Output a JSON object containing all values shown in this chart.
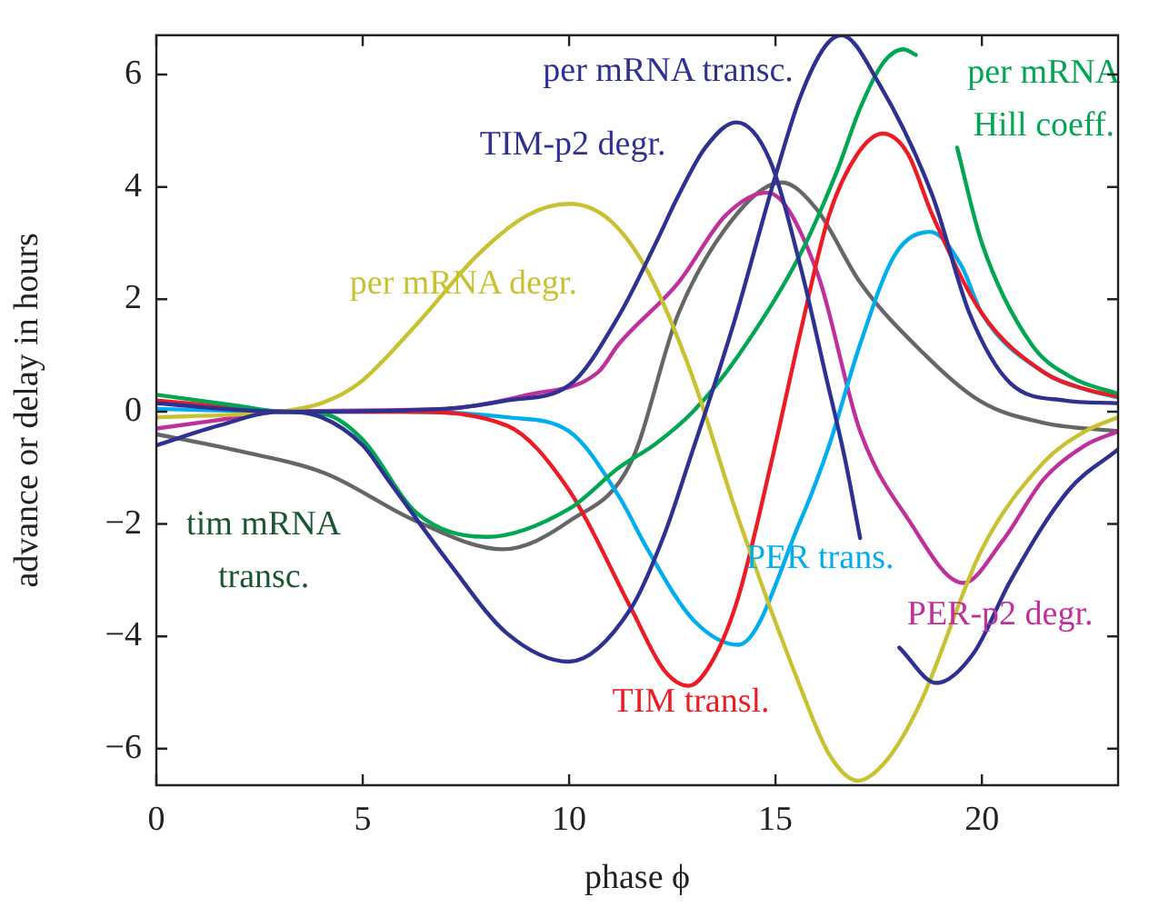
{
  "chart_data": {
    "type": "line",
    "xlabel": "phase ϕ",
    "ylabel": "advance or delay in hours",
    "xlim": [
      0,
      23.3
    ],
    "xticks": [
      0,
      5,
      10,
      15,
      20
    ],
    "ylim": [
      -6.65,
      6.7
    ],
    "yticks": [
      -6,
      -4,
      -2,
      0,
      2,
      4,
      6
    ],
    "grid": false,
    "legend": false,
    "marker": "none",
    "line_style": "solid",
    "annotations": [
      "tim mRNA transc."
    ],
    "series": [
      {
        "name": "per mRNA transc.",
        "color": "#2e3192",
        "x": [
          0,
          1.5,
          3,
          4,
          5,
          5.6,
          7.1,
          8.5,
          10,
          11.5,
          12.3,
          12.9,
          14,
          15,
          15.6,
          16.2,
          16.6,
          17.5,
          18.8,
          19.7,
          20.7,
          22,
          23.3
        ],
        "values": [
          -0.6,
          -0.25,
          0,
          -0.1,
          -0.6,
          -1.2,
          -2.7,
          -3.95,
          -4.45,
          -3.5,
          -2.2,
          -0.9,
          1.6,
          4.2,
          5.6,
          6.5,
          6.7,
          5.85,
          3.85,
          1.75,
          0.5,
          0.2,
          0.15
        ]
      },
      {
        "name": "TIM-p2 degr.",
        "color": "#2e3192",
        "x": [
          0,
          3,
          7,
          8.5,
          10,
          11.2,
          12.1,
          12.65,
          13.3,
          14.05,
          14.85,
          15.6,
          16.2,
          16.7,
          17.05,
          17.5,
          18,
          18.9,
          19.8,
          20.7,
          22.1,
          23.3
        ],
        "values": [
          0.15,
          0,
          0.05,
          0.2,
          0.47,
          1.7,
          3,
          3.85,
          4.7,
          5.15,
          4.5,
          2.6,
          0.7,
          -0.9,
          -2.25,
          null,
          -4.2,
          -4.83,
          -4.3,
          -3,
          -1.4,
          -0.67
        ]
      },
      {
        "name": "per mRNA degr.",
        "color": "#c8c232",
        "x": [
          0,
          2,
          3,
          4,
          4.9,
          6.3,
          7.8,
          9,
          10,
          11,
          11.9,
          12.95,
          14.1,
          15.6,
          16.3,
          17,
          17.7,
          18.5,
          20,
          21.5,
          22.5,
          23.3
        ],
        "values": [
          -0.1,
          -0.05,
          0,
          0.15,
          0.5,
          1.55,
          2.8,
          3.5,
          3.7,
          3.4,
          2.5,
          0.7,
          -1.9,
          -4.9,
          -6.1,
          -6.57,
          -6.2,
          -5.2,
          -2.45,
          -0.9,
          -0.35,
          -0.1
        ]
      },
      {
        "name": "per mRNA Hill coeff.",
        "color": "#00a651",
        "x": [
          0,
          2,
          3,
          4.1,
          5,
          6.3,
          8,
          10,
          11.2,
          12.1,
          13,
          14.1,
          15.6,
          16.5,
          17.05,
          17.6,
          18.1,
          18.4,
          18.9,
          19.4,
          20,
          21.2,
          22.2,
          23.3
        ],
        "values": [
          0.3,
          0.1,
          0,
          -0.05,
          -0.5,
          -1.8,
          -2.23,
          -1.73,
          -1,
          -0.57,
          0,
          1,
          2.8,
          4.3,
          5.4,
          6.2,
          6.45,
          6.35,
          null,
          4.7,
          3,
          1.2,
          0.6,
          0.32
        ]
      },
      {
        "name": "TIM transl.",
        "color": "#ed1c24",
        "x": [
          0,
          1.5,
          3,
          6,
          8.5,
          10,
          11.5,
          12.3,
          12.9,
          13.5,
          14.1,
          14.9,
          15.6,
          16.3,
          17,
          17.6,
          18.2,
          18.8,
          20,
          21.5,
          22.5,
          23.3
        ],
        "values": [
          0.2,
          0.1,
          0,
          0,
          -0.25,
          -1.4,
          -3.5,
          -4.6,
          -4.88,
          -4.4,
          -3.3,
          -0.9,
          1.4,
          3.5,
          4.6,
          4.95,
          4.6,
          3.5,
          1.75,
          0.7,
          0.4,
          0.27
        ]
      },
      {
        "name": "PER trans.",
        "color": "#00aeef",
        "x": [
          0,
          3,
          6,
          8.5,
          10,
          11.2,
          11.9,
          13,
          14.1,
          15.6,
          16.3,
          17.05,
          17.9,
          18.75,
          19.5,
          20,
          21.5,
          22.5,
          23.3
        ],
        "values": [
          0.05,
          0,
          0,
          -0.1,
          -0.35,
          -1.5,
          -2.45,
          -3.7,
          -4.15,
          -1.95,
          -0.6,
          1.2,
          2.8,
          3.2,
          2.6,
          1.75,
          0.7,
          0.4,
          0.25
        ]
      },
      {
        "name": "PER-p2 degr.",
        "color": "#c0309c",
        "x": [
          0,
          1.5,
          3,
          7,
          9,
          10.7,
          11.2,
          12.65,
          13.8,
          14.8,
          16,
          17.05,
          18.2,
          19.55,
          20.5,
          21.5,
          22.5,
          23.3
        ],
        "values": [
          -0.3,
          -0.15,
          0,
          0.05,
          0.3,
          0.7,
          1.2,
          2.3,
          3.5,
          3.9,
          2.5,
          -0.35,
          -1.9,
          -3.05,
          -2.3,
          -1.2,
          -0.6,
          -0.35
        ]
      },
      {
        "color": "#666666",
        "x": [
          0,
          2,
          4.1,
          6.3,
          8.4,
          10,
          11.5,
          12.65,
          14.1,
          15.15,
          16,
          17.05,
          18.5,
          20,
          21.5,
          23.3
        ],
        "values": [
          -0.4,
          -0.7,
          -1.1,
          -1.95,
          -2.45,
          -1.95,
          -0.9,
          1.75,
          3.55,
          4.08,
          3.6,
          2.3,
          1.1,
          0.17,
          -0.2,
          -0.35
        ]
      }
    ]
  }
}
